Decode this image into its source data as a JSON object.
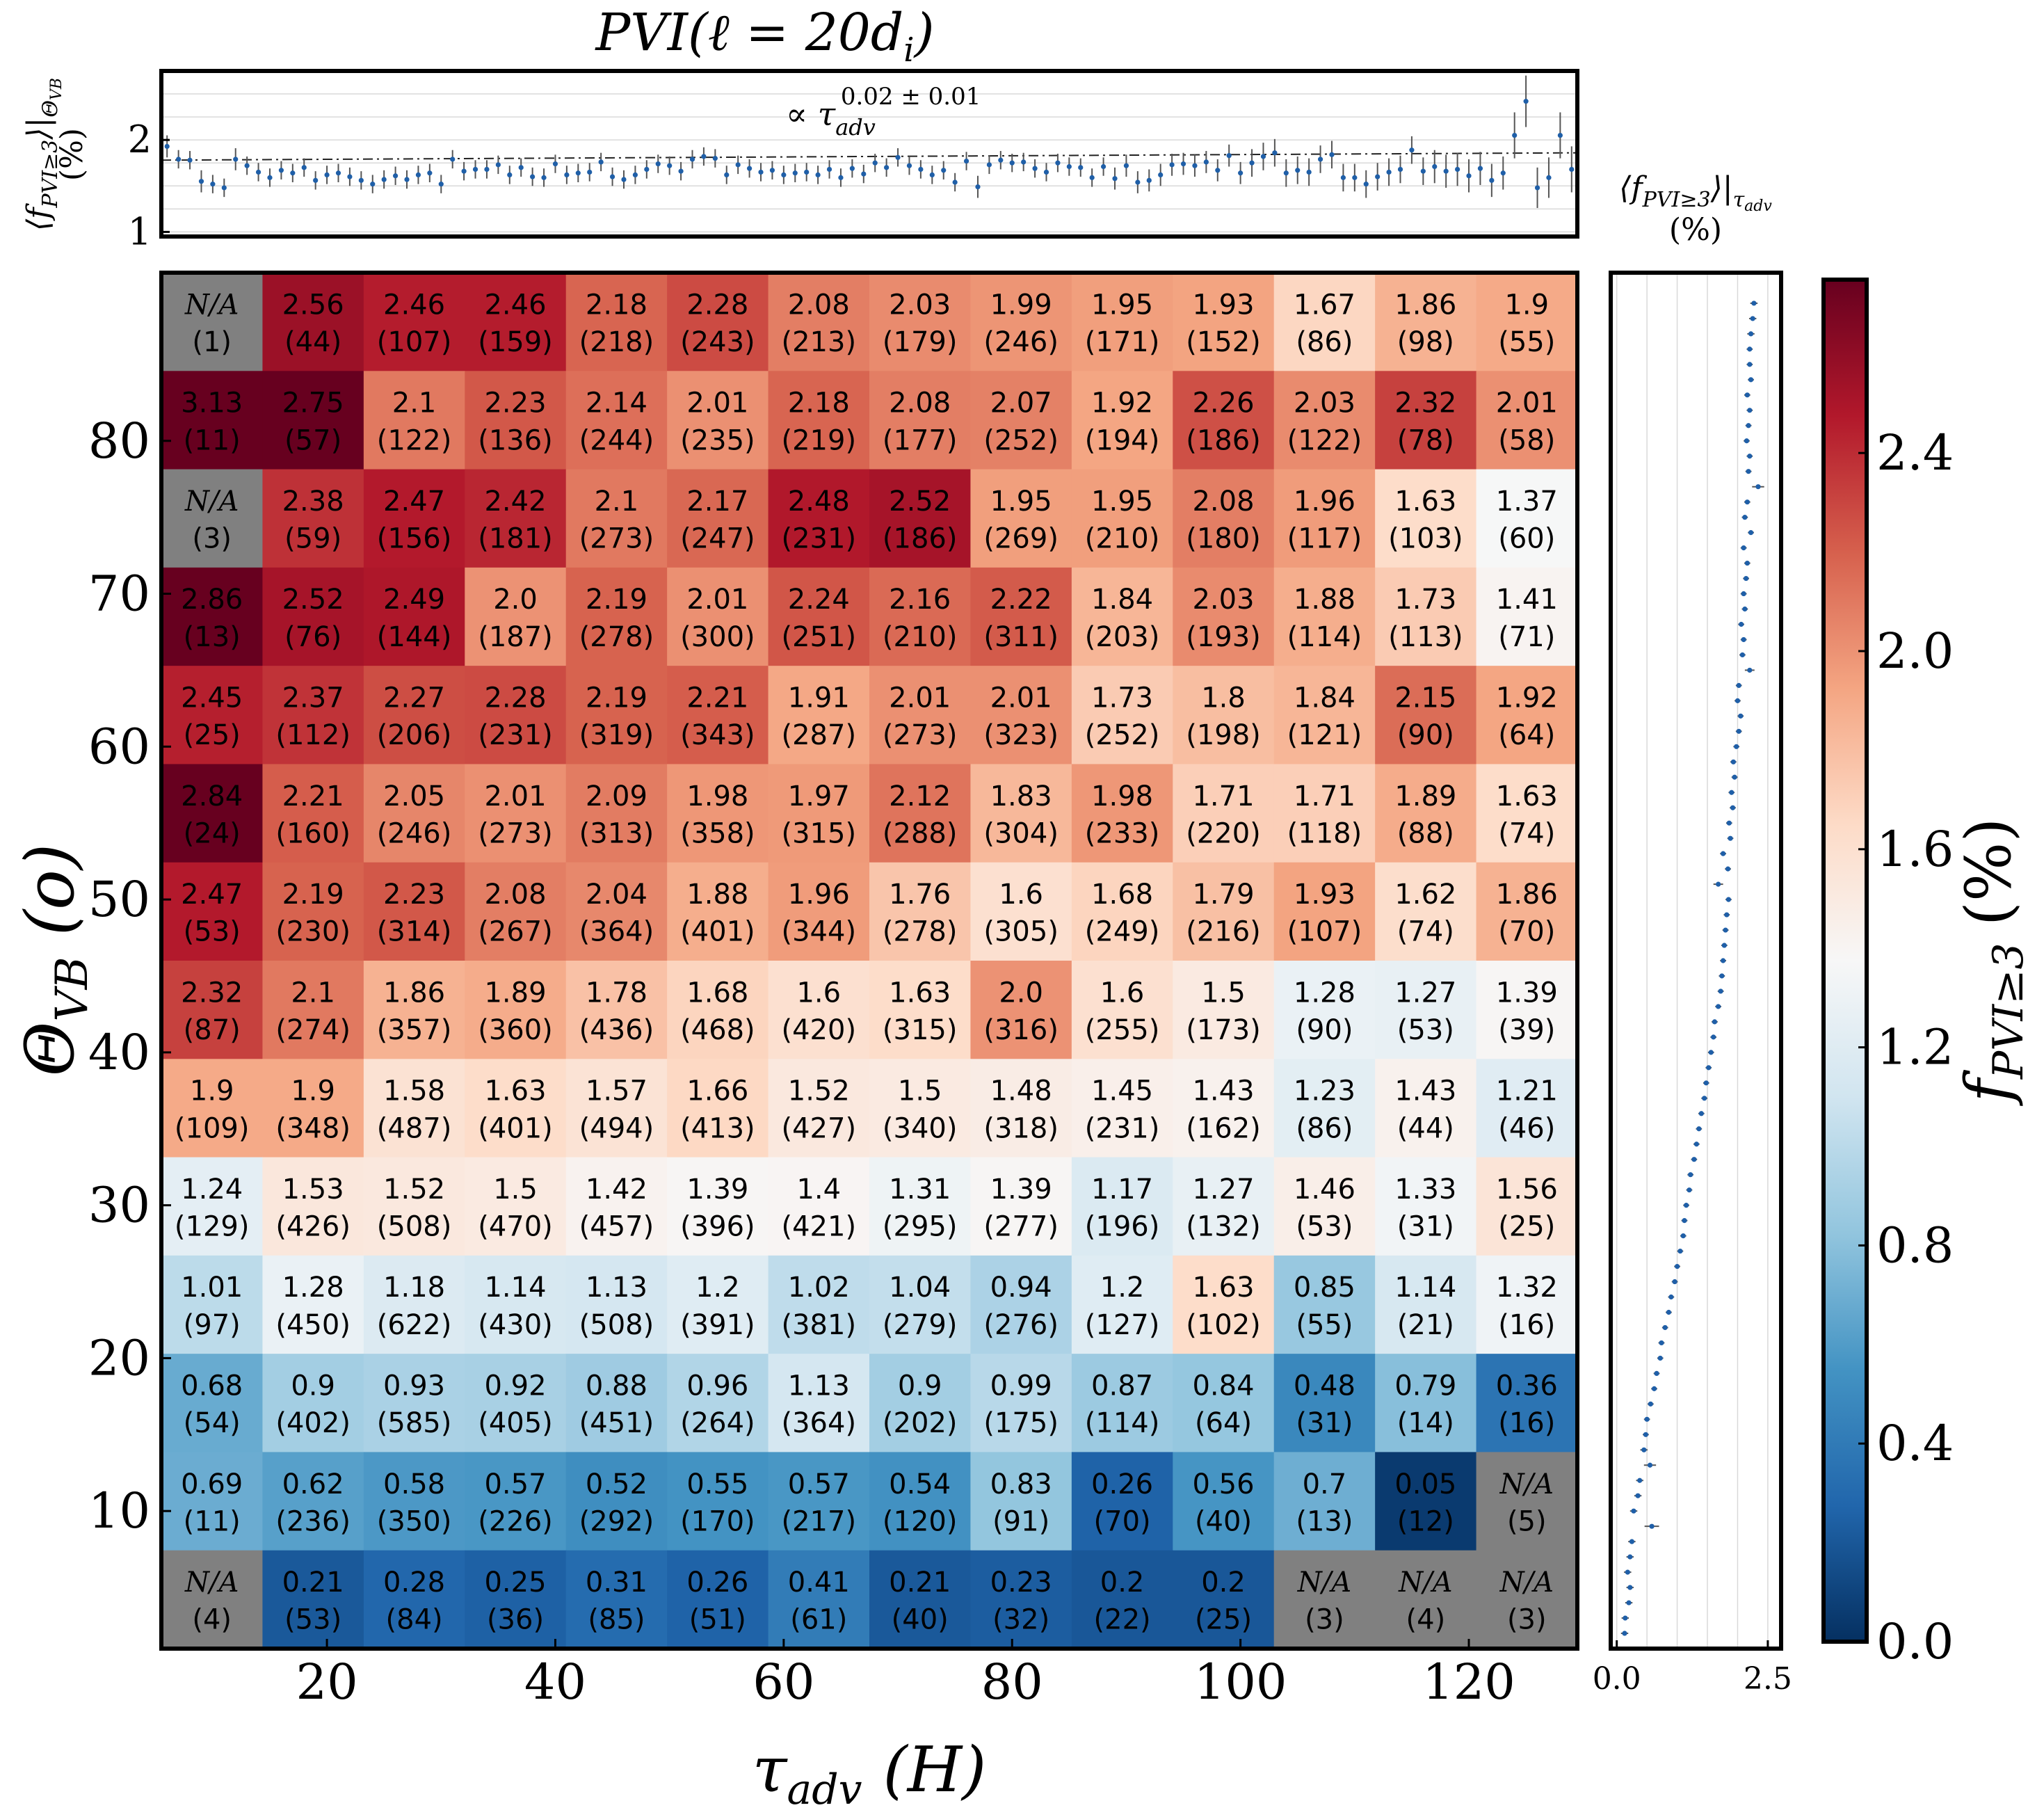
{
  "chart_data": {
    "type": "heatmap",
    "title": "PVI(ℓ  = 20d",
    "title_sub": "i",
    "xlabel": "τ",
    "xlabel_sub": "adv",
    "xlabel_units": "(H)",
    "ylabel": "Θ",
    "ylabel_sub": "VB",
    "ylabel_units": "(o)",
    "x_ticks": [
      "20",
      "40",
      "60",
      "80",
      "100",
      "120"
    ],
    "x_tick_values": [
      20,
      40,
      60,
      80,
      100,
      120
    ],
    "xlim": [
      5.5,
      129.5
    ],
    "y_ticks": [
      "10",
      "20",
      "30",
      "40",
      "50",
      "60",
      "70",
      "80"
    ],
    "y_tick_values": [
      10,
      20,
      30,
      40,
      50,
      60,
      70,
      80
    ],
    "ylim": [
      1,
      91
    ],
    "x_bin_width": 8.857,
    "y_bin_width": 6.43,
    "na_label": "N/A",
    "rows": [
      {
        "values": [
          "N/A",
          "2.56",
          "2.46",
          "2.46",
          "2.18",
          "2.28",
          "2.08",
          "2.03",
          "1.99",
          "1.95",
          "1.93",
          "1.67",
          "1.86",
          "1.9"
        ],
        "counts": [
          "(1)",
          "(44)",
          "(107)",
          "(159)",
          "(218)",
          "(243)",
          "(213)",
          "(179)",
          "(246)",
          "(171)",
          "(152)",
          "(86)",
          "(98)",
          "(55)"
        ]
      },
      {
        "values": [
          "3.13",
          "2.75",
          "2.1",
          "2.23",
          "2.14",
          "2.01",
          "2.18",
          "2.08",
          "2.07",
          "1.92",
          "2.26",
          "2.03",
          "2.32",
          "2.01"
        ],
        "counts": [
          "(11)",
          "(57)",
          "(122)",
          "(136)",
          "(244)",
          "(235)",
          "(219)",
          "(177)",
          "(252)",
          "(194)",
          "(186)",
          "(122)",
          "(78)",
          "(58)"
        ]
      },
      {
        "values": [
          "N/A",
          "2.38",
          "2.47",
          "2.42",
          "2.1",
          "2.17",
          "2.48",
          "2.52",
          "1.95",
          "1.95",
          "2.08",
          "1.96",
          "1.63",
          "1.37"
        ],
        "counts": [
          "(3)",
          "(59)",
          "(156)",
          "(181)",
          "(273)",
          "(247)",
          "(231)",
          "(186)",
          "(269)",
          "(210)",
          "(180)",
          "(117)",
          "(103)",
          "(60)"
        ]
      },
      {
        "values": [
          "2.86",
          "2.52",
          "2.49",
          "2.0",
          "2.19",
          "2.01",
          "2.24",
          "2.16",
          "2.22",
          "1.84",
          "2.03",
          "1.88",
          "1.73",
          "1.41"
        ],
        "counts": [
          "(13)",
          "(76)",
          "(144)",
          "(187)",
          "(278)",
          "(300)",
          "(251)",
          "(210)",
          "(311)",
          "(203)",
          "(193)",
          "(114)",
          "(113)",
          "(71)"
        ]
      },
      {
        "values": [
          "2.45",
          "2.37",
          "2.27",
          "2.28",
          "2.19",
          "2.21",
          "1.91",
          "2.01",
          "2.01",
          "1.73",
          "1.8",
          "1.84",
          "2.15",
          "1.92"
        ],
        "counts": [
          "(25)",
          "(112)",
          "(206)",
          "(231)",
          "(319)",
          "(343)",
          "(287)",
          "(273)",
          "(323)",
          "(252)",
          "(198)",
          "(121)",
          "(90)",
          "(64)"
        ]
      },
      {
        "values": [
          "2.84",
          "2.21",
          "2.05",
          "2.01",
          "2.09",
          "1.98",
          "1.97",
          "2.12",
          "1.83",
          "1.98",
          "1.71",
          "1.71",
          "1.89",
          "1.63"
        ],
        "counts": [
          "(24)",
          "(160)",
          "(246)",
          "(273)",
          "(313)",
          "(358)",
          "(315)",
          "(288)",
          "(304)",
          "(233)",
          "(220)",
          "(118)",
          "(88)",
          "(74)"
        ]
      },
      {
        "values": [
          "2.47",
          "2.19",
          "2.23",
          "2.08",
          "2.04",
          "1.88",
          "1.96",
          "1.76",
          "1.6",
          "1.68",
          "1.79",
          "1.93",
          "1.62",
          "1.86"
        ],
        "counts": [
          "(53)",
          "(230)",
          "(314)",
          "(267)",
          "(364)",
          "(401)",
          "(344)",
          "(278)",
          "(305)",
          "(249)",
          "(216)",
          "(107)",
          "(74)",
          "(70)"
        ]
      },
      {
        "values": [
          "2.32",
          "2.1",
          "1.86",
          "1.89",
          "1.78",
          "1.68",
          "1.6",
          "1.63",
          "2.0",
          "1.6",
          "1.5",
          "1.28",
          "1.27",
          "1.39"
        ],
        "counts": [
          "(87)",
          "(274)",
          "(357)",
          "(360)",
          "(436)",
          "(468)",
          "(420)",
          "(315)",
          "(316)",
          "(255)",
          "(173)",
          "(90)",
          "(53)",
          "(39)"
        ]
      },
      {
        "values": [
          "1.9",
          "1.9",
          "1.58",
          "1.63",
          "1.57",
          "1.66",
          "1.52",
          "1.5",
          "1.48",
          "1.45",
          "1.43",
          "1.23",
          "1.43",
          "1.21"
        ],
        "counts": [
          "(109)",
          "(348)",
          "(487)",
          "(401)",
          "(494)",
          "(413)",
          "(427)",
          "(340)",
          "(318)",
          "(231)",
          "(162)",
          "(86)",
          "(44)",
          "(46)"
        ]
      },
      {
        "values": [
          "1.24",
          "1.53",
          "1.52",
          "1.5",
          "1.42",
          "1.39",
          "1.4",
          "1.31",
          "1.39",
          "1.17",
          "1.27",
          "1.46",
          "1.33",
          "1.56"
        ],
        "counts": [
          "(129)",
          "(426)",
          "(508)",
          "(470)",
          "(457)",
          "(396)",
          "(421)",
          "(295)",
          "(277)",
          "(196)",
          "(132)",
          "(53)",
          "(31)",
          "(25)"
        ]
      },
      {
        "values": [
          "1.01",
          "1.28",
          "1.18",
          "1.14",
          "1.13",
          "1.2",
          "1.02",
          "1.04",
          "0.94",
          "1.2",
          "1.63",
          "0.85",
          "1.14",
          "1.32"
        ],
        "counts": [
          "(97)",
          "(450)",
          "(622)",
          "(430)",
          "(508)",
          "(391)",
          "(381)",
          "(279)",
          "(276)",
          "(127)",
          "(102)",
          "(55)",
          "(21)",
          "(16)"
        ]
      },
      {
        "values": [
          "0.68",
          "0.9",
          "0.93",
          "0.92",
          "0.88",
          "0.96",
          "1.13",
          "0.9",
          "0.99",
          "0.87",
          "0.84",
          "0.48",
          "0.79",
          "0.36"
        ],
        "counts": [
          "(54)",
          "(402)",
          "(585)",
          "(405)",
          "(451)",
          "(264)",
          "(364)",
          "(202)",
          "(175)",
          "(114)",
          "(64)",
          "(31)",
          "(14)",
          "(16)"
        ]
      },
      {
        "values": [
          "0.69",
          "0.62",
          "0.58",
          "0.57",
          "0.52",
          "0.55",
          "0.57",
          "0.54",
          "0.83",
          "0.26",
          "0.56",
          "0.7",
          "0.05",
          "N/A"
        ],
        "counts": [
          "(11)",
          "(236)",
          "(350)",
          "(226)",
          "(292)",
          "(170)",
          "(217)",
          "(120)",
          "(91)",
          "(70)",
          "(40)",
          "(13)",
          "(12)",
          "(5)"
        ]
      },
      {
        "values": [
          "N/A",
          "0.21",
          "0.28",
          "0.25",
          "0.31",
          "0.26",
          "0.41",
          "0.21",
          "0.23",
          "0.2",
          "0.2",
          "N/A",
          "N/A",
          "N/A"
        ],
        "counts": [
          "(4)",
          "(53)",
          "(84)",
          "(36)",
          "(85)",
          "(51)",
          "(61)",
          "(40)",
          "(32)",
          "(22)",
          "(25)",
          "(3)",
          "(4)",
          "(3)"
        ]
      }
    ],
    "top_panel": {
      "ylabel": "⟨f",
      "ylabel_sub": "PVI≥3",
      "ylabel_tail": "⟩|",
      "ylabel_cond": "Θ",
      "ylabel_cond_sub": "VB",
      "ylabel_units": "(%)",
      "y_ticks": [
        "1",
        "2"
      ],
      "y_tick_values": [
        1,
        2
      ],
      "ylim": [
        0.95,
        2.75
      ],
      "fit_prefix": "∝ τ",
      "fit_sub": "adv",
      "fit_exp": "0.02 ± 0.01",
      "fit_line": [
        1.78,
        1.86
      ],
      "x": [
        6,
        7,
        8,
        9,
        10,
        11,
        12,
        13,
        14,
        15,
        16,
        17,
        18,
        19,
        20,
        21,
        22,
        23,
        24,
        25,
        26,
        27,
        28,
        29,
        30,
        31,
        32,
        33,
        34,
        35,
        36,
        37,
        38,
        39,
        40,
        41,
        42,
        43,
        44,
        45,
        46,
        47,
        48,
        49,
        50,
        51,
        52,
        53,
        54,
        55,
        56,
        57,
        58,
        59,
        60,
        61,
        62,
        63,
        64,
        65,
        66,
        67,
        68,
        69,
        70,
        71,
        72,
        73,
        74,
        75,
        76,
        77,
        78,
        79,
        80,
        81,
        82,
        83,
        84,
        85,
        86,
        87,
        88,
        89,
        90,
        91,
        92,
        93,
        94,
        95,
        96,
        97,
        98,
        99,
        100,
        101,
        102,
        103,
        104,
        105,
        106,
        107,
        108,
        109,
        110,
        111,
        112,
        113,
        114,
        115,
        116,
        117,
        118,
        119,
        120,
        121,
        122,
        123,
        124,
        125,
        126,
        127,
        128,
        129
      ],
      "y": [
        1.93,
        1.79,
        1.78,
        1.55,
        1.52,
        1.48,
        1.79,
        1.72,
        1.65,
        1.59,
        1.67,
        1.64,
        1.7,
        1.56,
        1.62,
        1.64,
        1.6,
        1.56,
        1.52,
        1.57,
        1.61,
        1.57,
        1.62,
        1.64,
        1.52,
        1.79,
        1.66,
        1.68,
        1.68,
        1.73,
        1.62,
        1.7,
        1.6,
        1.59,
        1.74,
        1.62,
        1.64,
        1.65,
        1.76,
        1.6,
        1.57,
        1.62,
        1.68,
        1.74,
        1.72,
        1.66,
        1.79,
        1.82,
        1.8,
        1.62,
        1.73,
        1.69,
        1.65,
        1.67,
        1.62,
        1.64,
        1.65,
        1.62,
        1.68,
        1.59,
        1.69,
        1.63,
        1.75,
        1.7,
        1.81,
        1.72,
        1.68,
        1.62,
        1.67,
        1.54,
        1.77,
        1.49,
        1.73,
        1.78,
        1.75,
        1.76,
        1.69,
        1.65,
        1.75,
        1.71,
        1.7,
        1.59,
        1.71,
        1.58,
        1.72,
        1.54,
        1.56,
        1.62,
        1.73,
        1.74,
        1.72,
        1.76,
        1.67,
        1.83,
        1.64,
        1.75,
        1.82,
        1.86,
        1.64,
        1.67,
        1.65,
        1.79,
        1.84,
        1.59,
        1.59,
        1.52,
        1.6,
        1.65,
        1.68,
        1.89,
        1.66,
        1.71,
        1.66,
        1.68,
        1.61,
        1.69,
        1.56,
        1.64,
        2.05,
        2.42,
        1.48,
        1.59,
        2.05,
        1.68
      ],
      "err": [
        0.12,
        0.1,
        0.1,
        0.12,
        0.1,
        0.1,
        0.12,
        0.1,
        0.1,
        0.1,
        0.1,
        0.1,
        0.1,
        0.1,
        0.1,
        0.1,
        0.1,
        0.1,
        0.1,
        0.1,
        0.1,
        0.1,
        0.1,
        0.1,
        0.1,
        0.1,
        0.1,
        0.1,
        0.1,
        0.1,
        0.1,
        0.1,
        0.1,
        0.1,
        0.1,
        0.1,
        0.1,
        0.1,
        0.1,
        0.1,
        0.1,
        0.1,
        0.1,
        0.1,
        0.1,
        0.1,
        0.1,
        0.1,
        0.1,
        0.1,
        0.1,
        0.1,
        0.1,
        0.1,
        0.1,
        0.1,
        0.1,
        0.1,
        0.1,
        0.1,
        0.1,
        0.1,
        0.1,
        0.1,
        0.1,
        0.1,
        0.1,
        0.1,
        0.1,
        0.1,
        0.1,
        0.12,
        0.1,
        0.1,
        0.1,
        0.1,
        0.1,
        0.1,
        0.1,
        0.1,
        0.1,
        0.1,
        0.1,
        0.12,
        0.12,
        0.12,
        0.12,
        0.12,
        0.12,
        0.12,
        0.12,
        0.12,
        0.12,
        0.12,
        0.12,
        0.15,
        0.15,
        0.15,
        0.15,
        0.15,
        0.15,
        0.15,
        0.15,
        0.15,
        0.15,
        0.15,
        0.15,
        0.15,
        0.15,
        0.15,
        0.15,
        0.18,
        0.18,
        0.18,
        0.18,
        0.18,
        0.18,
        0.18,
        0.25,
        0.28,
        0.22,
        0.22,
        0.25,
        0.25
      ]
    },
    "right_panel": {
      "ylabel": "⟨f",
      "ylabel_sub": "PVI≥3",
      "ylabel_tail": "⟩|",
      "ylabel_cond": "τ",
      "ylabel_cond_sub": "adv",
      "ylabel_units": "(%)",
      "x_ticks": [
        "0.0",
        "2.5"
      ],
      "x_tick_values": [
        0,
        2.5
      ],
      "xlim": [
        -0.1,
        2.72
      ],
      "theta": [
        2,
        3,
        4,
        5,
        6,
        7,
        8,
        9,
        10,
        11,
        12,
        13,
        14,
        15,
        16,
        17,
        18,
        19,
        20,
        21,
        22,
        23,
        24,
        25,
        26,
        27,
        28,
        29,
        30,
        31,
        32,
        33,
        34,
        35,
        36,
        37,
        38,
        39,
        40,
        41,
        42,
        43,
        44,
        45,
        46,
        47,
        48,
        49,
        50,
        51,
        52,
        53,
        54,
        55,
        56,
        57,
        58,
        59,
        60,
        61,
        62,
        63,
        64,
        65,
        66,
        67,
        68,
        69,
        70,
        71,
        72,
        73,
        74,
        75,
        76,
        77,
        78,
        79,
        80,
        81,
        82,
        83,
        84,
        85,
        86,
        87,
        88,
        89
      ],
      "value": [
        0.13,
        0.14,
        0.2,
        0.22,
        0.18,
        0.22,
        0.25,
        0.58,
        0.28,
        0.35,
        0.38,
        0.55,
        0.45,
        0.48,
        0.5,
        0.56,
        0.62,
        0.66,
        0.72,
        0.74,
        0.8,
        0.86,
        0.9,
        0.96,
        1.0,
        1.05,
        1.1,
        1.12,
        1.15,
        1.2,
        1.22,
        1.28,
        1.32,
        1.36,
        1.4,
        1.45,
        1.48,
        1.52,
        1.56,
        1.6,
        1.62,
        1.68,
        1.72,
        1.74,
        1.76,
        1.78,
        1.8,
        1.82,
        1.85,
        1.68,
        1.84,
        1.76,
        1.88,
        1.86,
        1.92,
        1.9,
        1.95,
        1.93,
        1.98,
        2.02,
        2.05,
        2.0,
        2.02,
        2.2,
        2.08,
        2.1,
        2.06,
        2.12,
        2.1,
        2.14,
        2.16,
        2.1,
        2.22,
        2.12,
        2.16,
        2.34,
        2.18,
        2.2,
        2.15,
        2.18,
        2.2,
        2.16,
        2.22,
        2.2,
        2.2,
        2.22,
        2.25,
        2.27
      ],
      "err": [
        0.06,
        0.06,
        0.06,
        0.06,
        0.06,
        0.06,
        0.06,
        0.12,
        0.06,
        0.06,
        0.06,
        0.1,
        0.06,
        0.05,
        0.05,
        0.05,
        0.05,
        0.05,
        0.05,
        0.05,
        0.05,
        0.05,
        0.05,
        0.05,
        0.05,
        0.05,
        0.05,
        0.05,
        0.05,
        0.05,
        0.05,
        0.05,
        0.05,
        0.05,
        0.05,
        0.05,
        0.05,
        0.05,
        0.05,
        0.05,
        0.05,
        0.05,
        0.05,
        0.05,
        0.05,
        0.05,
        0.05,
        0.05,
        0.05,
        0.08,
        0.05,
        0.05,
        0.05,
        0.05,
        0.05,
        0.05,
        0.05,
        0.05,
        0.05,
        0.05,
        0.05,
        0.05,
        0.05,
        0.08,
        0.05,
        0.05,
        0.05,
        0.05,
        0.05,
        0.05,
        0.05,
        0.05,
        0.05,
        0.05,
        0.05,
        0.1,
        0.05,
        0.05,
        0.05,
        0.05,
        0.05,
        0.05,
        0.05,
        0.05,
        0.05,
        0.06,
        0.06,
        0.06
      ]
    },
    "colorbar": {
      "label": "f",
      "label_sub": "PVI≥3",
      "label_units": "(%)",
      "ticks": [
        "0.0",
        "0.4",
        "0.8",
        "1.2",
        "1.6",
        "2.0",
        "2.4"
      ],
      "tick_values": [
        0.0,
        0.4,
        0.8,
        1.2,
        1.6,
        2.0,
        2.4
      ],
      "vmin": 0.0,
      "vmax": 2.75,
      "colormap": "RdBu_r",
      "na_color": "#808080"
    }
  }
}
